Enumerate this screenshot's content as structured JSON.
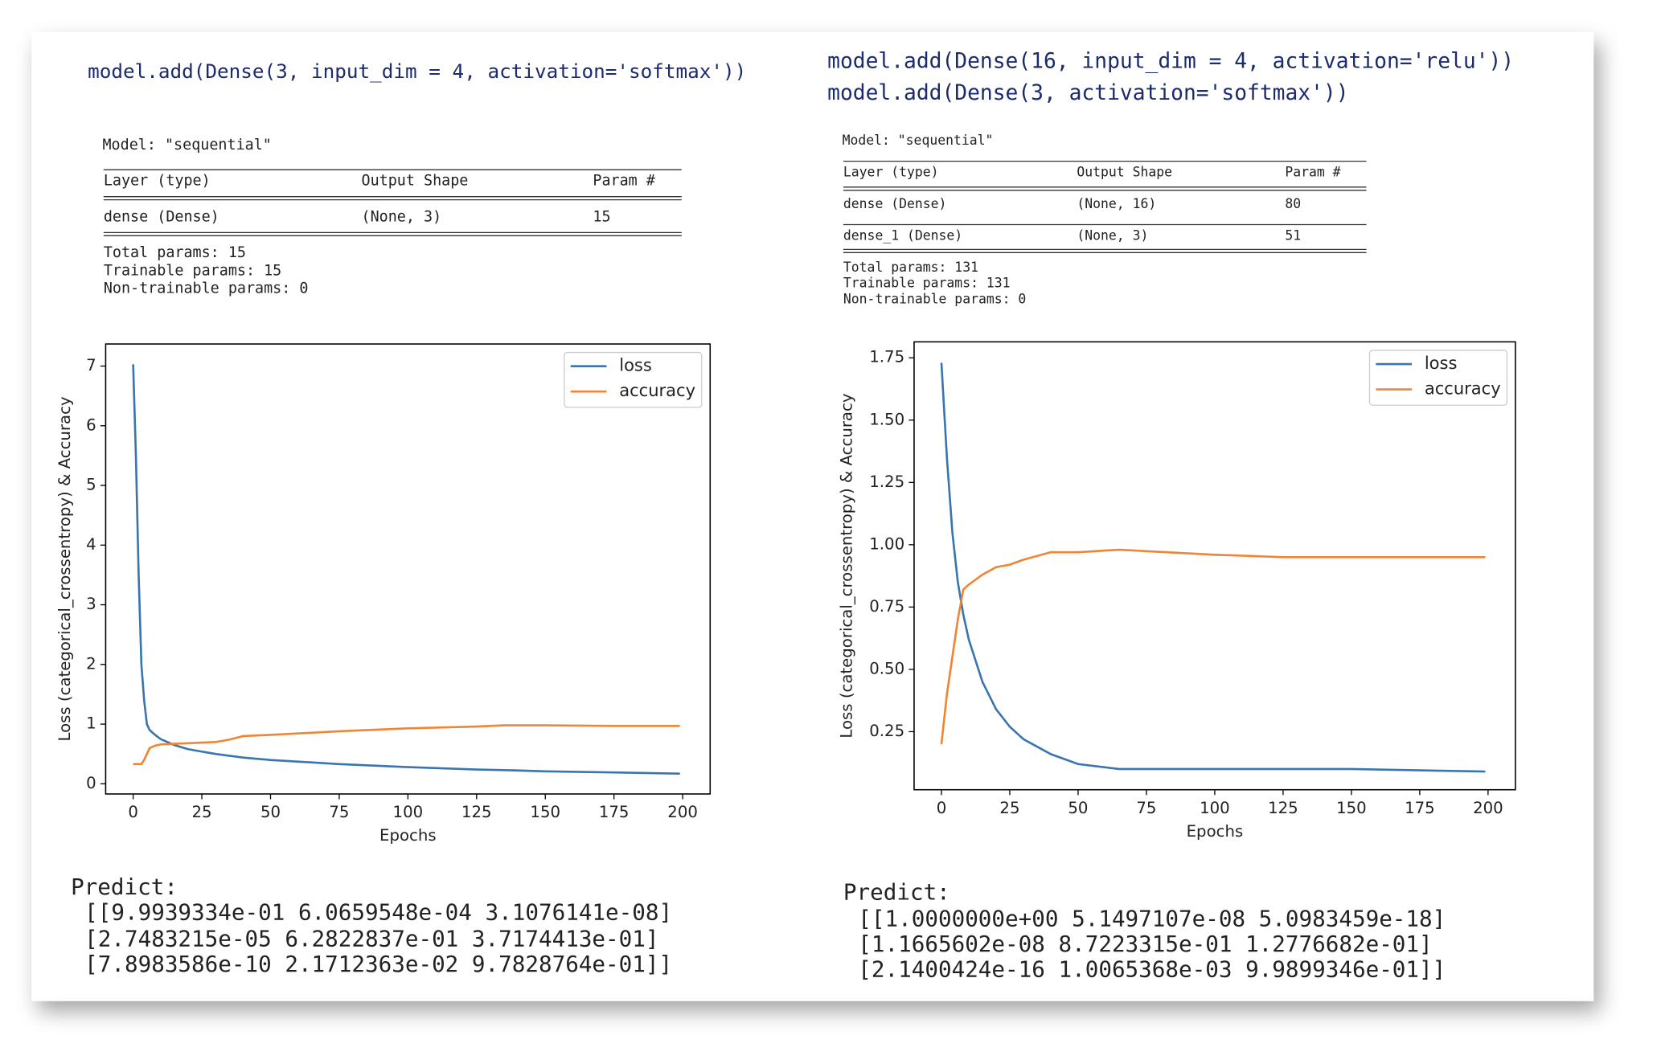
{
  "panels": [
    {
      "code": [
        "model.add(Dense(3, input_dim = 4, activation='softmax'))"
      ],
      "summary": {
        "title": "Model: \"sequential\"",
        "headers": [
          "Layer (type)",
          "Output Shape",
          "Param #"
        ],
        "rows": [
          [
            "dense (Dense)",
            "(None, 3)",
            "15"
          ]
        ],
        "totals": [
          "Total params: 15",
          "Trainable params: 15",
          "Non-trainable params: 0"
        ]
      },
      "predict": {
        "label": "Predict:",
        "rows": [
          "[[9.9939334e-01 6.0659548e-04 3.1076141e-08]",
          "[2.7483215e-05 6.2822837e-01 3.7174413e-01]",
          "[7.8983586e-10 2.1712363e-02 9.7828764e-01]]"
        ]
      }
    },
    {
      "code": [
        "model.add(Dense(16, input_dim = 4, activation='relu'))",
        "model.add(Dense(3, activation='softmax'))"
      ],
      "summary": {
        "title": "Model: \"sequential\"",
        "headers": [
          "Layer (type)",
          "Output Shape",
          "Param #"
        ],
        "rows": [
          [
            "dense (Dense)",
            "(None, 16)",
            "80"
          ],
          [
            "dense_1 (Dense)",
            "(None, 3)",
            "51"
          ]
        ],
        "totals": [
          "Total params: 131",
          "Trainable params: 131",
          "Non-trainable params: 0"
        ]
      },
      "predict": {
        "label": "Predict:",
        "rows": [
          "[[1.0000000e+00 5.1497107e-08 5.0983459e-18]",
          "[1.1665602e-08 8.7223315e-01 1.2776682e-01]",
          "[2.1400424e-16 1.0065368e-03 9.9899346e-01]]"
        ]
      }
    }
  ],
  "chart_data": [
    {
      "type": "line",
      "xlabel": "Epochs",
      "ylabel": "Loss (categorical_crossentropy) & Accuracy",
      "x": [
        0,
        1,
        2,
        3,
        4,
        5,
        6,
        8,
        10,
        15,
        20,
        25,
        30,
        35,
        40,
        50,
        75,
        100,
        125,
        135,
        150,
        175,
        199
      ],
      "series": [
        {
          "name": "loss",
          "color": "#3a75b0",
          "values": [
            7.03,
            5.5,
            3.5,
            2.0,
            1.4,
            1.0,
            0.9,
            0.82,
            0.75,
            0.65,
            0.58,
            0.54,
            0.5,
            0.47,
            0.44,
            0.4,
            0.33,
            0.28,
            0.24,
            0.23,
            0.21,
            0.19,
            0.17
          ]
        },
        {
          "name": "accuracy",
          "color": "#ef8636",
          "values": [
            0.33,
            0.33,
            0.33,
            0.33,
            0.4,
            0.5,
            0.6,
            0.64,
            0.66,
            0.67,
            0.68,
            0.69,
            0.7,
            0.74,
            0.8,
            0.82,
            0.88,
            0.93,
            0.96,
            0.98,
            0.98,
            0.97,
            0.97
          ]
        }
      ],
      "xlim": [
        -10,
        210
      ],
      "ylim": [
        -0.17,
        7.37
      ],
      "xticks": [
        0,
        25,
        50,
        75,
        100,
        125,
        150,
        175,
        200
      ],
      "yticks": [
        0,
        1,
        2,
        3,
        4,
        5,
        6,
        7
      ],
      "legend": "upper right"
    },
    {
      "type": "line",
      "xlabel": "Epochs",
      "ylabel": "Loss (categorical_crossentropy) & Accuracy",
      "x": [
        0,
        2,
        4,
        6,
        8,
        10,
        15,
        20,
        25,
        30,
        40,
        50,
        65,
        100,
        125,
        150,
        199
      ],
      "series": [
        {
          "name": "loss",
          "color": "#3a75b0",
          "values": [
            1.73,
            1.35,
            1.05,
            0.85,
            0.72,
            0.62,
            0.45,
            0.34,
            0.27,
            0.22,
            0.16,
            0.12,
            0.1,
            0.1,
            0.1,
            0.1,
            0.09
          ]
        },
        {
          "name": "accuracy",
          "color": "#ef8636",
          "values": [
            0.2,
            0.4,
            0.55,
            0.7,
            0.82,
            0.84,
            0.88,
            0.91,
            0.92,
            0.94,
            0.97,
            0.97,
            0.98,
            0.96,
            0.95,
            0.95,
            0.95
          ]
        }
      ],
      "xlim": [
        -10,
        210
      ],
      "ylim": [
        0.017,
        1.814
      ],
      "xticks": [
        0,
        25,
        50,
        75,
        100,
        125,
        150,
        175,
        200
      ],
      "yticks": [
        0.25,
        {
          "value": 0.5,
          "label": "0.50"
        },
        0.75,
        {
          "value": 1,
          "label": "1.00"
        },
        1.25,
        {
          "value": 1.5,
          "label": "1.50"
        },
        1.75
      ],
      "legend": "upper right"
    }
  ]
}
